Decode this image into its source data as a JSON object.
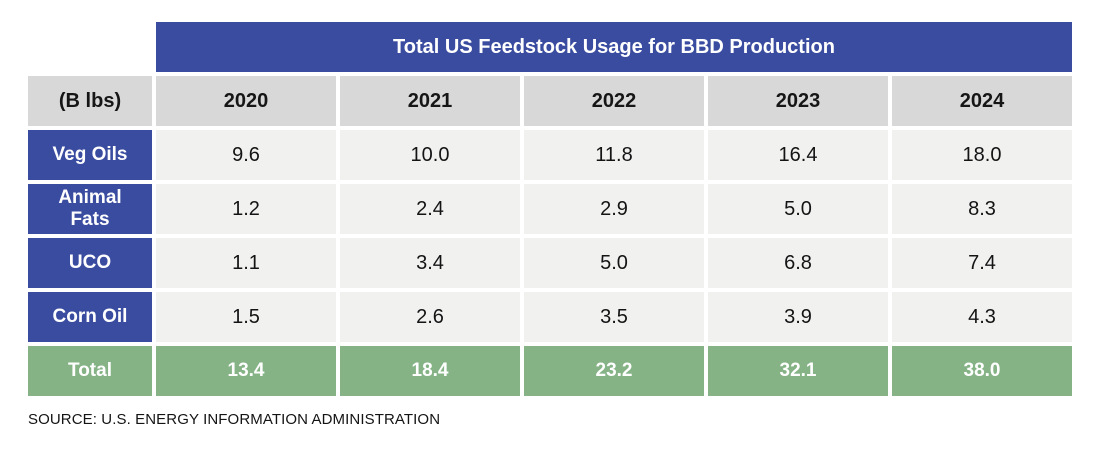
{
  "title": "Total US Feedstock Usage for BBD Production",
  "unit_label": "(B lbs)",
  "columns": [
    "2020",
    "2021",
    "2022",
    "2023",
    "2024"
  ],
  "rows": [
    {
      "label": "Veg Oils",
      "values": [
        "9.6",
        "10.0",
        "11.8",
        "16.4",
        "18.0"
      ]
    },
    {
      "label": "Animal Fats",
      "values": [
        "1.2",
        "2.4",
        "2.9",
        "5.0",
        "8.3"
      ]
    },
    {
      "label": "UCO",
      "values": [
        "1.1",
        "3.4",
        "5.0",
        "6.8",
        "7.4"
      ]
    },
    {
      "label": "Corn Oil",
      "values": [
        "1.5",
        "2.6",
        "3.5",
        "3.9",
        "4.3"
      ]
    }
  ],
  "total_row": {
    "label": "Total",
    "values": [
      "13.4",
      "18.4",
      "23.2",
      "32.1",
      "38.0"
    ]
  },
  "source": "SOURCE: U.S. ENERGY INFORMATION ADMINISTRATION",
  "colors": {
    "header_blue": "#3A4CA0",
    "total_green": "#85B386",
    "year_gray": "#D8D8D8",
    "cell_gray": "#F1F1F0",
    "title_text": "#FFFFFF",
    "data_text": "#141414"
  },
  "chart_data": {
    "type": "table",
    "title": "Total US Feedstock Usage for BBD Production",
    "unit": "B lbs",
    "categories": [
      "2020",
      "2021",
      "2022",
      "2023",
      "2024"
    ],
    "series": [
      {
        "name": "Veg Oils",
        "values": [
          9.6,
          10.0,
          11.8,
          16.4,
          18.0
        ]
      },
      {
        "name": "Animal Fats",
        "values": [
          1.2,
          2.4,
          2.9,
          5.0,
          8.3
        ]
      },
      {
        "name": "UCO",
        "values": [
          1.1,
          3.4,
          5.0,
          6.8,
          7.4
        ]
      },
      {
        "name": "Corn Oil",
        "values": [
          1.5,
          2.6,
          3.5,
          3.9,
          4.3
        ]
      },
      {
        "name": "Total",
        "values": [
          13.4,
          18.4,
          23.2,
          32.1,
          38.0
        ]
      }
    ],
    "source": "SOURCE: U.S. ENERGY INFORMATION ADMINISTRATION",
    "layout": "rows are feedstock types, columns are years, total row highlighted green"
  }
}
